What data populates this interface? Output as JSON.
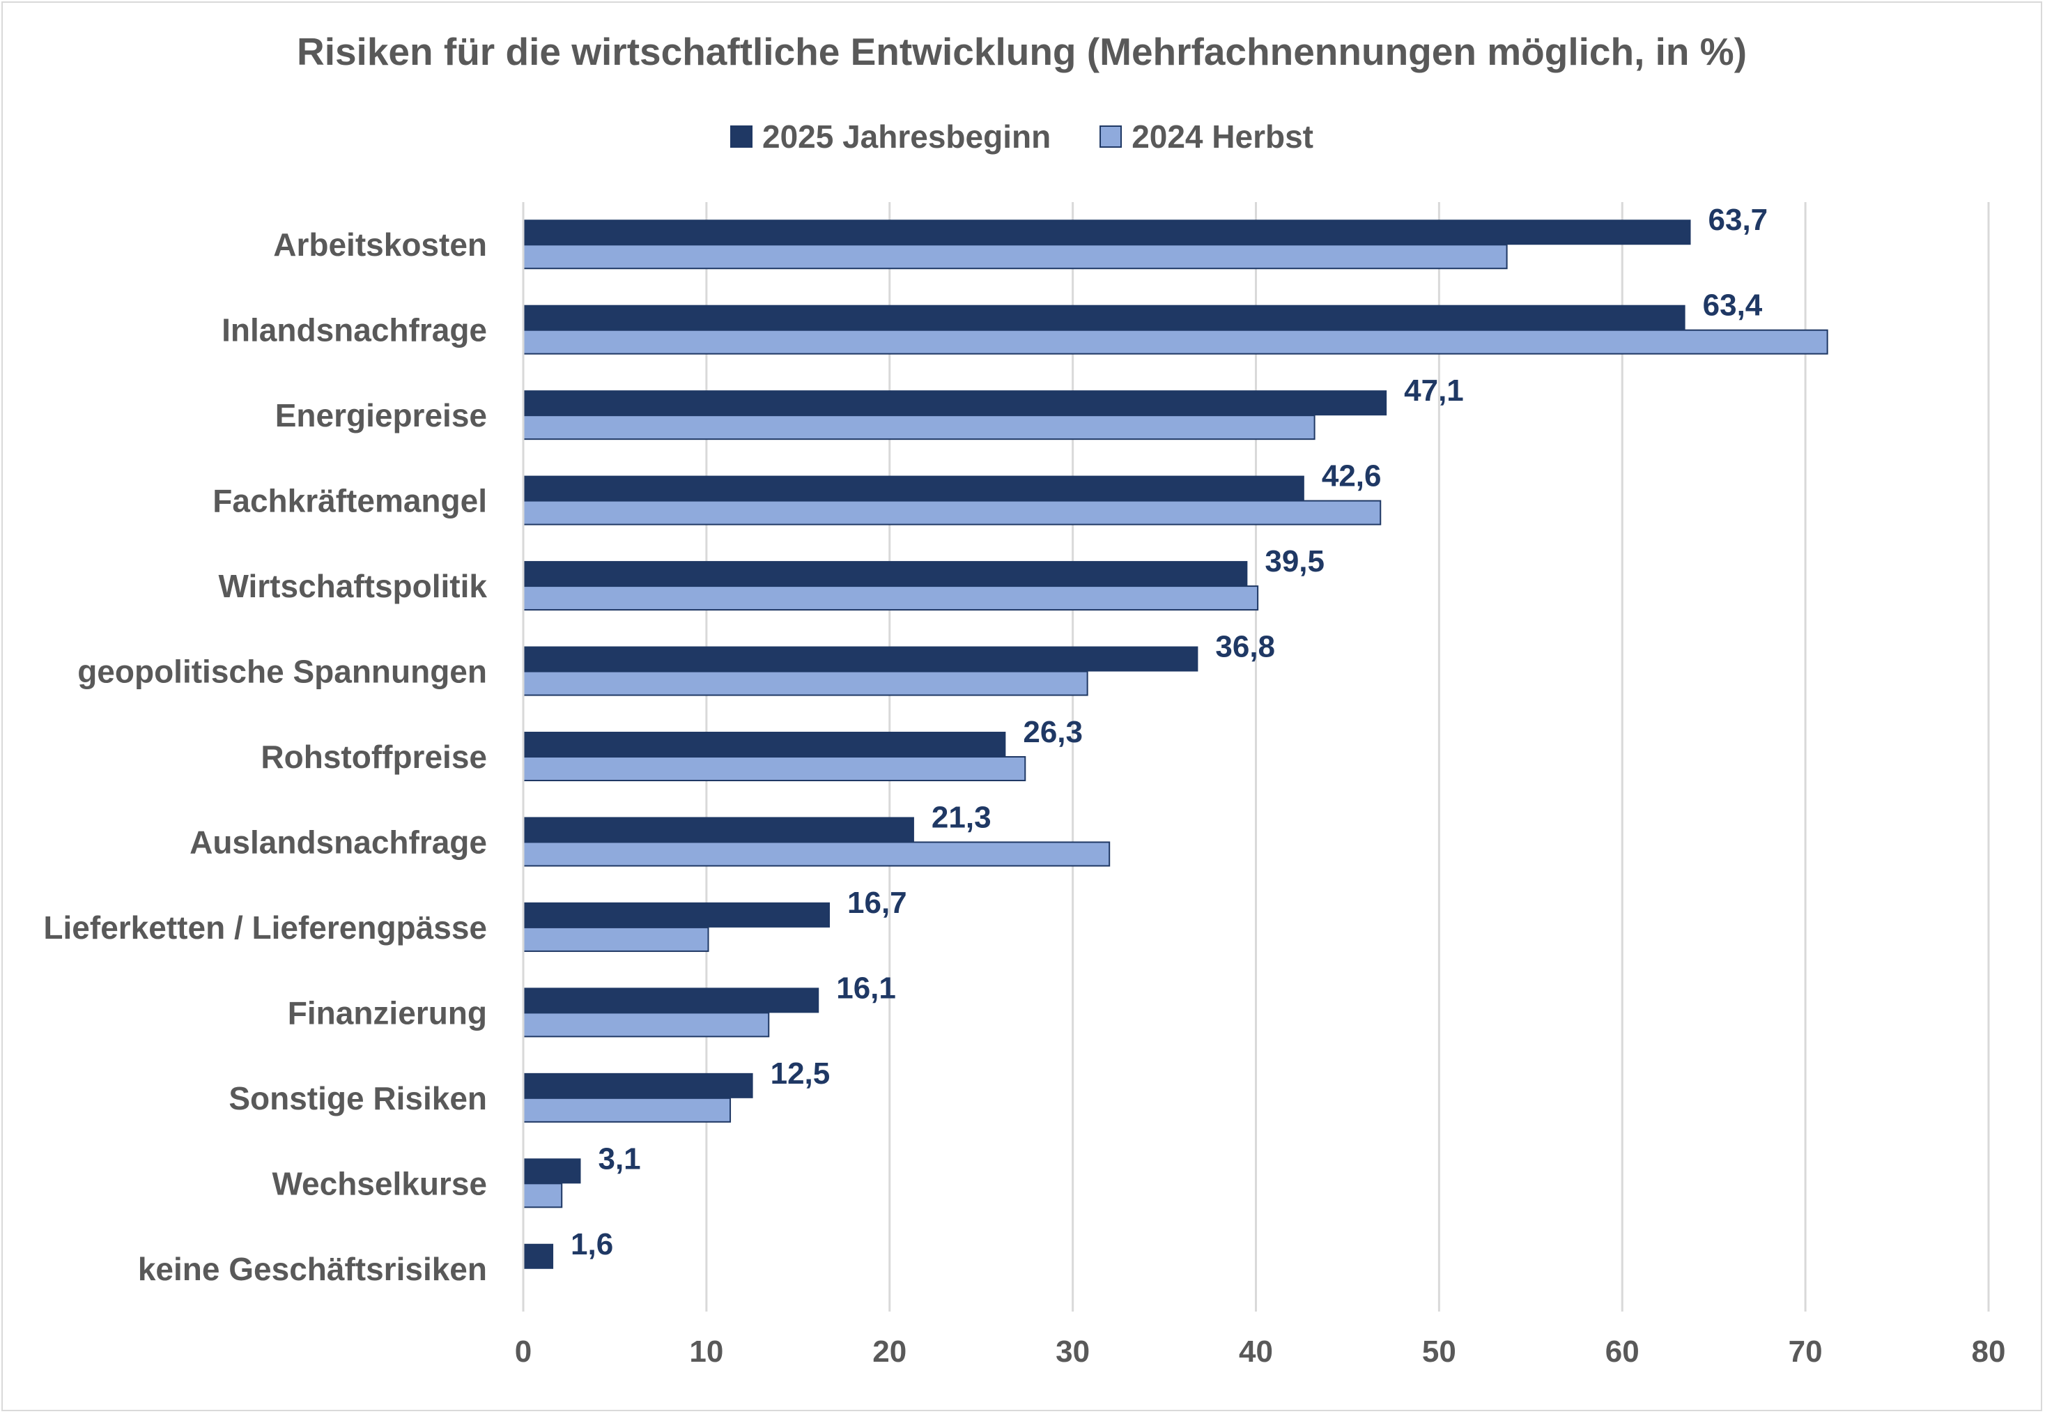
{
  "chart_data": {
    "type": "bar",
    "orientation": "horizontal",
    "title": "Risiken für die wirtschaftliche Entwicklung (Mehrfachnennungen möglich, in %)",
    "categories": [
      "Arbeitskosten",
      "Inlandsnachfrage",
      "Energiepreise",
      "Fachkräftemangel",
      "Wirtschaftspolitik",
      "geopolitische Spannungen",
      "Rohstoffpreise",
      "Auslandsnachfrage",
      "Lieferketten / Lieferengpässe",
      "Finanzierung",
      "Sonstige Risiken",
      "Wechselkurse",
      "keine Geschäftsrisiken"
    ],
    "series": [
      {
        "name": "2025 Jahresbeginn",
        "color": "#1f3864",
        "values": [
          63.7,
          63.4,
          47.1,
          42.6,
          39.5,
          36.8,
          26.3,
          21.3,
          16.7,
          16.1,
          12.5,
          3.1,
          1.6
        ],
        "data_labels": [
          "63,7",
          "63,4",
          "47,1",
          "42,6",
          "39,5",
          "36,8",
          "26,3",
          "21,3",
          "16,7",
          "16,1",
          "12,5",
          "3,1",
          "1,6"
        ]
      },
      {
        "name": "2024 Herbst",
        "color": "#8faadc",
        "values": [
          53.7,
          71.2,
          43.2,
          46.8,
          40.1,
          30.8,
          27.4,
          32.0,
          10.1,
          13.4,
          11.3,
          2.1,
          0
        ]
      }
    ],
    "xlim": [
      0,
      80
    ],
    "xticks": [
      "0",
      "10",
      "20",
      "30",
      "40",
      "50",
      "60",
      "70",
      "80"
    ],
    "xtick_values": [
      0,
      10,
      20,
      30,
      40,
      50,
      60,
      70,
      80
    ],
    "grid": "vertical",
    "legend_position": "top",
    "data_label_color": "#1f3864",
    "text_color": "#595959",
    "gridline_color": "#d9d9d9"
  }
}
